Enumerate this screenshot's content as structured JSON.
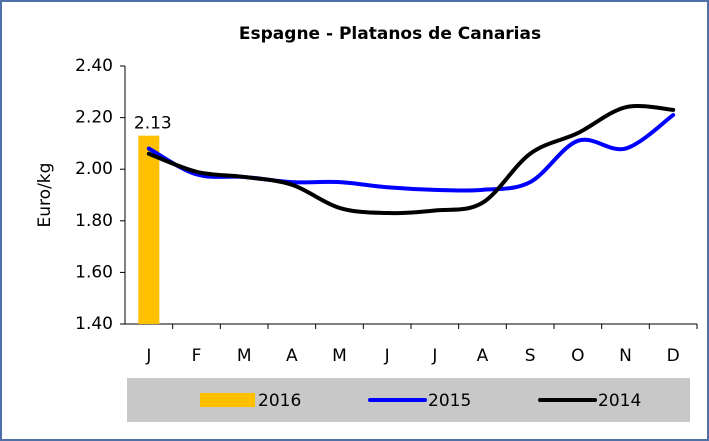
{
  "chart_data": {
    "type": "combo",
    "title": "Espagne - Platanos de Canarias",
    "y_label": "Euro/kg",
    "categories": [
      "J",
      "F",
      "M",
      "A",
      "M",
      "J",
      "J",
      "A",
      "S",
      "O",
      "N",
      "D"
    ],
    "series": [
      {
        "name": "2016",
        "type": "bar",
        "color": "#ffc000",
        "values": [
          2.13,
          null,
          null,
          null,
          null,
          null,
          null,
          null,
          null,
          null,
          null,
          null
        ]
      },
      {
        "name": "2015",
        "type": "line",
        "color": "#0000ff",
        "values": [
          2.08,
          1.98,
          1.97,
          1.95,
          1.95,
          1.93,
          1.92,
          1.92,
          1.95,
          2.11,
          2.08,
          2.21
        ]
      },
      {
        "name": "2014",
        "type": "line",
        "color": "#000000",
        "values": [
          2.06,
          1.99,
          1.97,
          1.94,
          1.85,
          1.83,
          1.84,
          1.87,
          2.06,
          2.14,
          2.24,
          2.23
        ]
      }
    ],
    "ylim": [
      1.4,
      2.4
    ],
    "yticks": [
      {
        "value": 1.4,
        "label": "1.40"
      },
      {
        "value": 1.6,
        "label": "1.60"
      },
      {
        "value": 1.8,
        "label": "1.80"
      },
      {
        "value": 2,
        "label": "2.00"
      },
      {
        "value": 2.2,
        "label": "2.20"
      },
      {
        "value": 2.4,
        "label": "2.40"
      }
    ],
    "grid": false,
    "legend": "bottom"
  }
}
